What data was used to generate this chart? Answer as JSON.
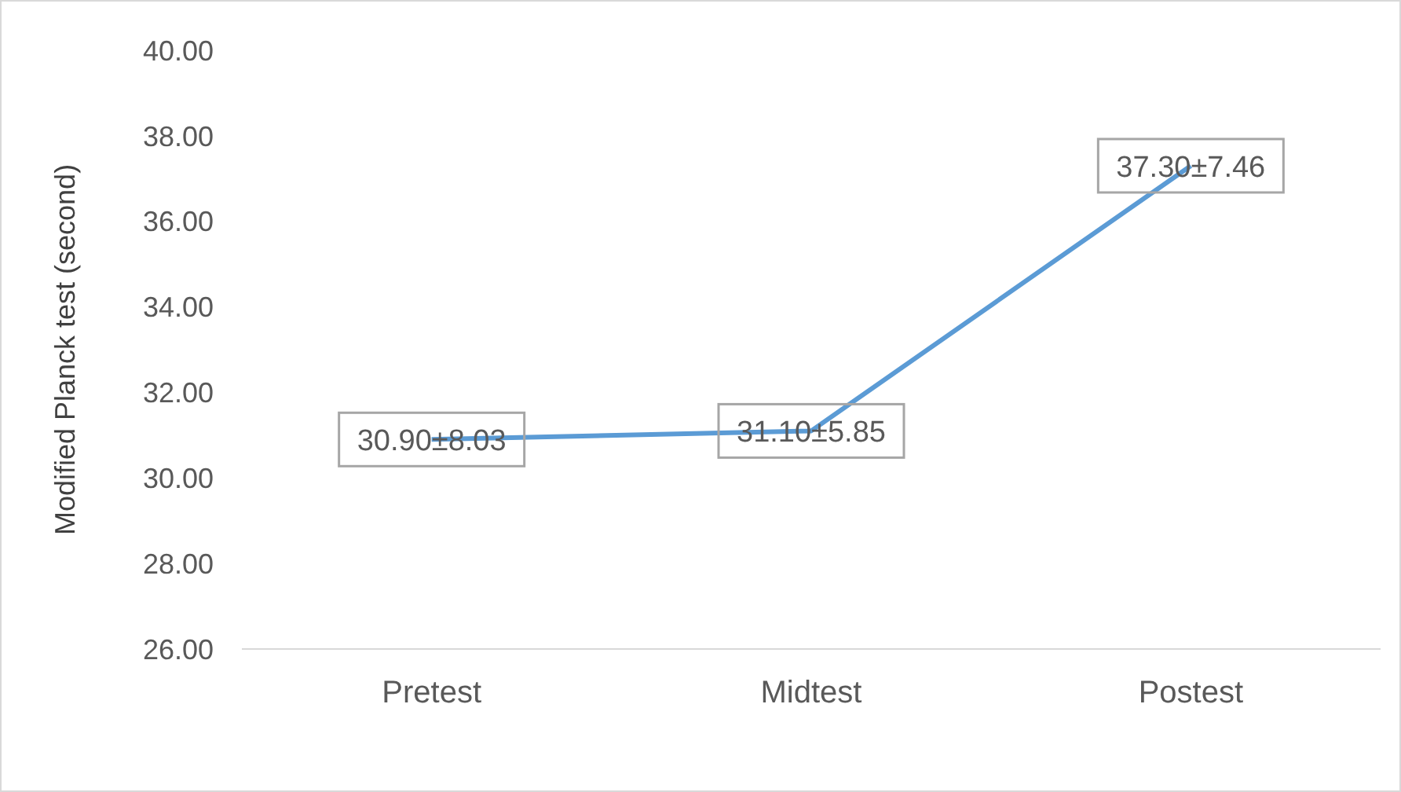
{
  "chart_data": {
    "type": "line",
    "ylabel": "Modified Planck test (second)",
    "categories": [
      "Pretest",
      "Midtest",
      "Postest"
    ],
    "series": [
      {
        "color": "#5b9bd5",
        "values": [
          30.9,
          31.1,
          37.3
        ],
        "value_labels": [
          "30.90±8.03",
          "31.10±5.85",
          "37.30±7.46"
        ]
      }
    ],
    "ylim": [
      26,
      40
    ],
    "yticks": [
      {
        "value": 26,
        "label": "26.00"
      },
      {
        "value": 28,
        "label": "28.00"
      },
      {
        "value": 30,
        "label": "30.00"
      },
      {
        "value": 32,
        "label": "32.00"
      },
      {
        "value": 34,
        "label": "34.00"
      },
      {
        "value": 36,
        "label": "36.00"
      },
      {
        "value": 38,
        "label": "38.00"
      },
      {
        "value": 40,
        "label": "40.00"
      }
    ],
    "grid": false,
    "legend": false,
    "line_style": "solid"
  }
}
